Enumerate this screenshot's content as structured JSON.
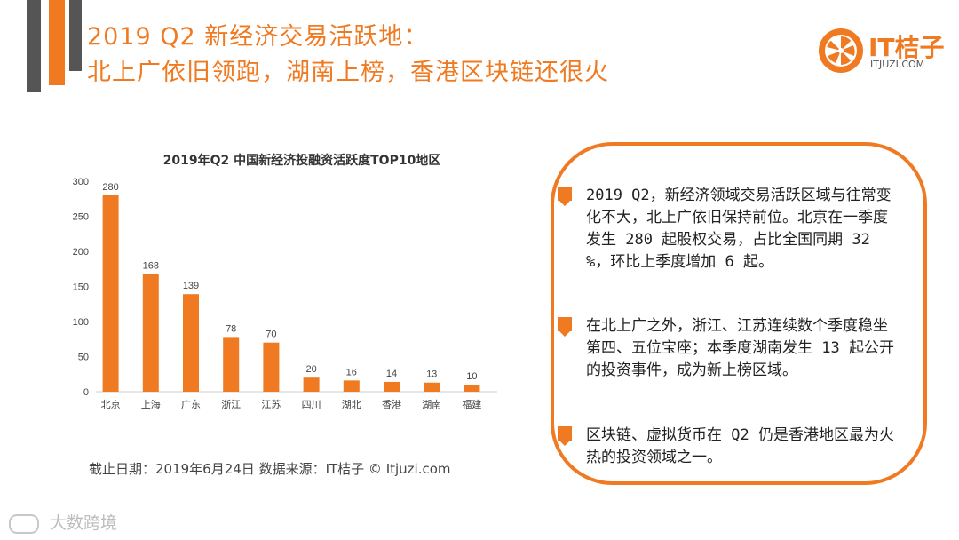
{
  "header": {
    "line1": "2019 Q2 新经济交易活跃地：",
    "line2": "北上广依旧领跑，湖南上榜，香港区块链还很火"
  },
  "logo": {
    "text": "IT桔子",
    "sub": "ITJUZI.COM",
    "color": "#f07a22"
  },
  "chart_data": {
    "type": "bar",
    "title": "2019年Q2 中国新经济投融资活跃度TOP10地区",
    "categories": [
      "北京",
      "上海",
      "广东",
      "浙江",
      "江苏",
      "四川",
      "湖北",
      "香港",
      "湖南",
      "福建"
    ],
    "values": [
      280,
      168,
      139,
      78,
      70,
      20,
      16,
      14,
      13,
      10
    ],
    "yticks": [
      0,
      50,
      100,
      150,
      200,
      250,
      300
    ],
    "ylim": [
      0,
      300
    ],
    "bar_color": "#f07a22",
    "grid": false,
    "legend": "none"
  },
  "source": "截止日期：2019年6月24日    数据来源：IT桔子 © Itjuzi.com",
  "notes": [
    "2019 Q2，新经济领域交易活跃区域与往常变化不大，北上广依旧保持前位。北京在一季度发生 280 起股权交易，占比全国同期 32 %，环比上季度增加 6 起。",
    "在北上广之外，浙江、江苏连续数个季度稳坐第四、五位宝座；本季度湖南发生 13 起公开的投资事件，成为新上榜区域。",
    "区块链、虚拟货币在 Q2 仍是香港地区最为火热的投资领域之一。"
  ],
  "watermark": "大数跨境"
}
